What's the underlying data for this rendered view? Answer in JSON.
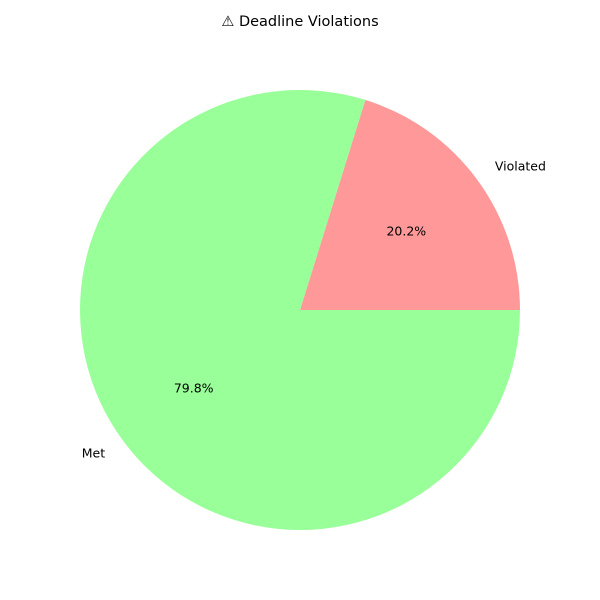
{
  "chart_data": {
    "type": "pie",
    "title": "⚠ Deadline Violations",
    "slices": [
      {
        "label": "Violated",
        "value": 20.2,
        "pct_label": "20.2%",
        "color": "#ff9999"
      },
      {
        "label": "Met",
        "value": 79.8,
        "pct_label": "79.8%",
        "color": "#99ff99"
      }
    ],
    "start_angle_deg": 0,
    "direction": "counterclockwise"
  }
}
